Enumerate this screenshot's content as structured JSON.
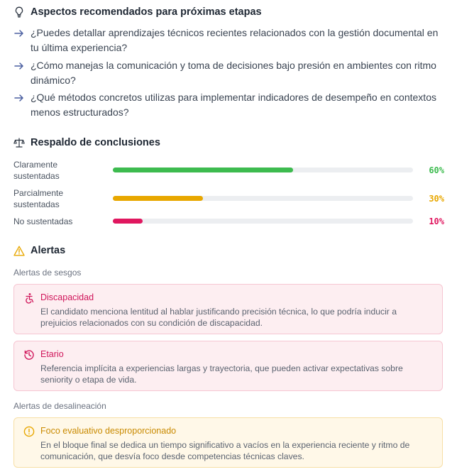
{
  "recommendations": {
    "title": "Aspectos recomendados para próximas etapas",
    "items": [
      "¿Puedes detallar aprendizajes técnicos recientes relacionados con la gestión documental en tu última experiencia?",
      "¿Cómo manejas la comunicación y toma de decisiones bajo presión en ambientes con ritmo dinámico?",
      "¿Qué métodos concretos utilizas para implementar indicadores de desempeño en contextos menos estructurados?"
    ]
  },
  "support": {
    "title": "Respaldo de conclusiones",
    "bars": [
      {
        "label": "Claramente sustentadas",
        "value": 60,
        "value_label": "60%",
        "color": "#3dbb4f"
      },
      {
        "label": "Parcialmente sustentadas",
        "value": 30,
        "value_label": "30%",
        "color": "#e8a700"
      },
      {
        "label": "No sustentadas",
        "value": 10,
        "value_label": "10%",
        "color": "#e0175f"
      }
    ]
  },
  "alerts": {
    "title": "Alertas",
    "bias_subtitle": "Alertas de sesgos",
    "bias": [
      {
        "title": "Discapacidad",
        "icon": "accessibility-icon",
        "body": "El candidato menciona lentitud al hablar justificando precisión técnica, lo que podría inducir a prejuicios relacionados con su condición de discapacidad."
      },
      {
        "title": "Etario",
        "icon": "history-clock-icon",
        "body": "Referencia implícita a experiencias largas y trayectoria, que pueden activar expectativas sobre seniority o etapa de vida."
      }
    ],
    "misalignment_subtitle": "Alertas de desalineación",
    "misalignment": [
      {
        "title": "Foco evaluativo desproporcionado",
        "icon": "alert-circle-icon",
        "body": "En el bloque final se dedica un tiempo significativo a vacíos en la experiencia reciente y ritmo de comunicación, que desvía foco desde competencias técnicas claves."
      }
    ]
  },
  "colors": {
    "pink_title": "#d0155a",
    "amber_title": "#c98a00",
    "warning": "#e8a700",
    "arrow": "#4a5fa0"
  }
}
